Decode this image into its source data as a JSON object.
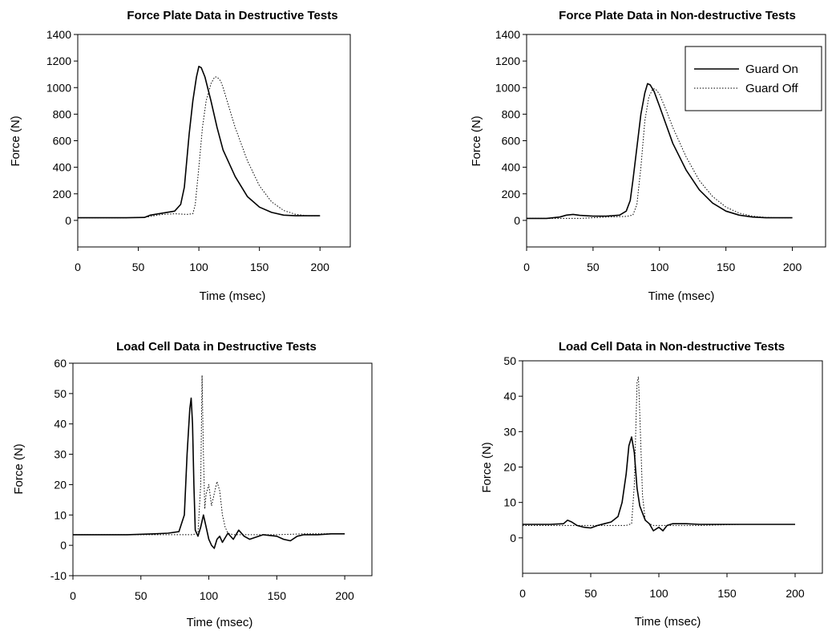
{
  "chart_data": [
    {
      "type": "line",
      "title": "Force Plate Data in Destructive Tests",
      "xlabel": "Time (msec)",
      "ylabel": "Force (N)",
      "xlim": [
        0,
        225
      ],
      "ylim": [
        -200,
        1400
      ],
      "xticks": [
        0,
        50,
        100,
        150,
        200
      ],
      "yticks": [
        0,
        200,
        400,
        600,
        800,
        1000,
        1200,
        1400
      ],
      "grid": false,
      "legend": false,
      "series": [
        {
          "name": "Guard On",
          "style": "solid",
          "x": [
            0,
            20,
            40,
            55,
            60,
            70,
            80,
            85,
            88,
            90,
            92,
            95,
            98,
            100,
            102,
            105,
            110,
            115,
            120,
            130,
            140,
            150,
            160,
            170,
            180,
            190,
            200
          ],
          "y": [
            20,
            20,
            20,
            22,
            40,
            55,
            70,
            120,
            250,
            450,
            650,
            900,
            1080,
            1160,
            1150,
            1080,
            900,
            700,
            530,
            330,
            180,
            100,
            60,
            40,
            35,
            35,
            35
          ]
        },
        {
          "name": "Guard Off",
          "style": "dotted",
          "x": [
            0,
            20,
            40,
            55,
            60,
            70,
            80,
            90,
            95,
            97,
            100,
            103,
            106,
            110,
            113,
            115,
            118,
            120,
            125,
            130,
            140,
            150,
            160,
            170,
            180,
            190,
            200
          ],
          "y": [
            20,
            20,
            20,
            22,
            30,
            45,
            50,
            45,
            50,
            120,
            400,
            700,
            900,
            1030,
            1080,
            1080,
            1050,
            1000,
            850,
            700,
            450,
            260,
            140,
            75,
            45,
            35,
            35
          ]
        }
      ]
    },
    {
      "type": "line",
      "title": "Force Plate Data in Non-destructive Tests",
      "xlabel": "Time (msec)",
      "ylabel": "Force (N)",
      "xlim": [
        0,
        225
      ],
      "ylim": [
        -200,
        1400
      ],
      "xticks": [
        0,
        50,
        100,
        150,
        200
      ],
      "yticks": [
        0,
        200,
        400,
        600,
        800,
        1000,
        1200,
        1400
      ],
      "grid": false,
      "legend": true,
      "legend_position": "top-right",
      "series": [
        {
          "name": "Guard On",
          "style": "solid",
          "x": [
            0,
            15,
            25,
            30,
            35,
            40,
            50,
            60,
            70,
            75,
            78,
            80,
            83,
            86,
            89,
            91,
            93,
            96,
            100,
            105,
            110,
            120,
            130,
            140,
            150,
            160,
            170,
            180,
            190,
            200
          ],
          "y": [
            15,
            15,
            25,
            40,
            45,
            38,
            32,
            32,
            40,
            70,
            150,
            300,
            550,
            800,
            960,
            1030,
            1020,
            970,
            860,
            720,
            580,
            380,
            230,
            130,
            70,
            40,
            25,
            20,
            20,
            20
          ]
        },
        {
          "name": "Guard Off",
          "style": "dotted",
          "x": [
            0,
            20,
            40,
            60,
            75,
            80,
            83,
            86,
            89,
            92,
            95,
            97,
            100,
            105,
            110,
            120,
            130,
            140,
            150,
            160,
            170,
            180,
            190,
            200
          ],
          "y": [
            15,
            15,
            15,
            25,
            30,
            40,
            120,
            400,
            750,
            930,
            990,
            990,
            950,
            830,
            700,
            480,
            300,
            180,
            100,
            55,
            32,
            22,
            20,
            20
          ]
        }
      ]
    },
    {
      "type": "line",
      "title": "Load Cell Data in Destructive Tests",
      "xlabel": "Time (msec)",
      "ylabel": "Force (N)",
      "xlim": [
        0,
        220
      ],
      "ylim": [
        -10,
        60
      ],
      "xticks": [
        0,
        50,
        100,
        150,
        200
      ],
      "yticks": [
        -10,
        0,
        10,
        20,
        30,
        40,
        50,
        60
      ],
      "grid": false,
      "legend": false,
      "series": [
        {
          "name": "Guard On",
          "style": "solid",
          "x": [
            0,
            20,
            40,
            60,
            70,
            78,
            82,
            84,
            86,
            87,
            88,
            89,
            90,
            92,
            94,
            96,
            98,
            100,
            102,
            104,
            106,
            108,
            110,
            114,
            118,
            122,
            126,
            130,
            140,
            150,
            155,
            160,
            165,
            170,
            180,
            190,
            200
          ],
          "y": [
            3.5,
            3.5,
            3.5,
            3.8,
            4,
            4.5,
            10,
            30,
            45,
            48.5,
            40,
            20,
            5,
            3,
            6,
            10,
            6,
            2,
            0,
            -1,
            2,
            3,
            1,
            4,
            2,
            5,
            3,
            2,
            3.5,
            3,
            2,
            1.5,
            3,
            3.5,
            3.5,
            3.8,
            3.8
          ]
        },
        {
          "name": "Guard Off",
          "style": "dotted",
          "x": [
            0,
            20,
            40,
            60,
            80,
            88,
            92,
            94,
            95,
            96,
            97,
            98,
            100,
            102,
            104,
            106,
            108,
            110,
            112,
            114,
            118,
            125,
            135,
            150,
            170,
            200
          ],
          "y": [
            3.5,
            3.5,
            3.5,
            3.5,
            3.5,
            3.5,
            4,
            20,
            56,
            30,
            12,
            17,
            20,
            13,
            17,
            21,
            18,
            10,
            6,
            4,
            3.5,
            3.5,
            3.5,
            3.5,
            3.8,
            3.8
          ]
        }
      ]
    },
    {
      "type": "line",
      "title": "Load Cell Data in Non-destructive Tests",
      "xlabel": "Time (msec)",
      "ylabel": "Force (N)",
      "xlim": [
        0,
        220
      ],
      "ylim": [
        -10,
        50
      ],
      "xticks": [
        0,
        50,
        100,
        150,
        200
      ],
      "yticks": [
        0,
        10,
        20,
        30,
        40,
        50
      ],
      "grid": false,
      "legend": false,
      "series": [
        {
          "name": "Guard On",
          "style": "solid",
          "x": [
            0,
            20,
            30,
            33,
            36,
            40,
            45,
            50,
            55,
            60,
            65,
            70,
            73,
            76,
            78,
            80,
            82,
            84,
            86,
            88,
            90,
            93,
            96,
            100,
            103,
            106,
            110,
            120,
            130,
            150,
            170,
            200
          ],
          "y": [
            3.8,
            3.8,
            4,
            5,
            4.5,
            3.5,
            3,
            2.8,
            3.5,
            4,
            4.5,
            6,
            10,
            18,
            26,
            28.5,
            24,
            14,
            9,
            7,
            5,
            4,
            2,
            3,
            2,
            3.5,
            4,
            4,
            3.8,
            3.8,
            3.8,
            3.8
          ]
        },
        {
          "name": "Guard Off",
          "style": "dotted",
          "x": [
            0,
            20,
            40,
            60,
            70,
            76,
            80,
            82,
            84,
            85,
            86,
            88,
            90,
            93,
            96,
            100,
            110,
            130,
            160,
            200
          ],
          "y": [
            3.5,
            3.5,
            3.5,
            3.5,
            3.5,
            3.5,
            4,
            15,
            44,
            45.5,
            35,
            12,
            5,
            4,
            3.5,
            3.5,
            3.5,
            3.5,
            3.8,
            3.8
          ]
        }
      ]
    }
  ]
}
